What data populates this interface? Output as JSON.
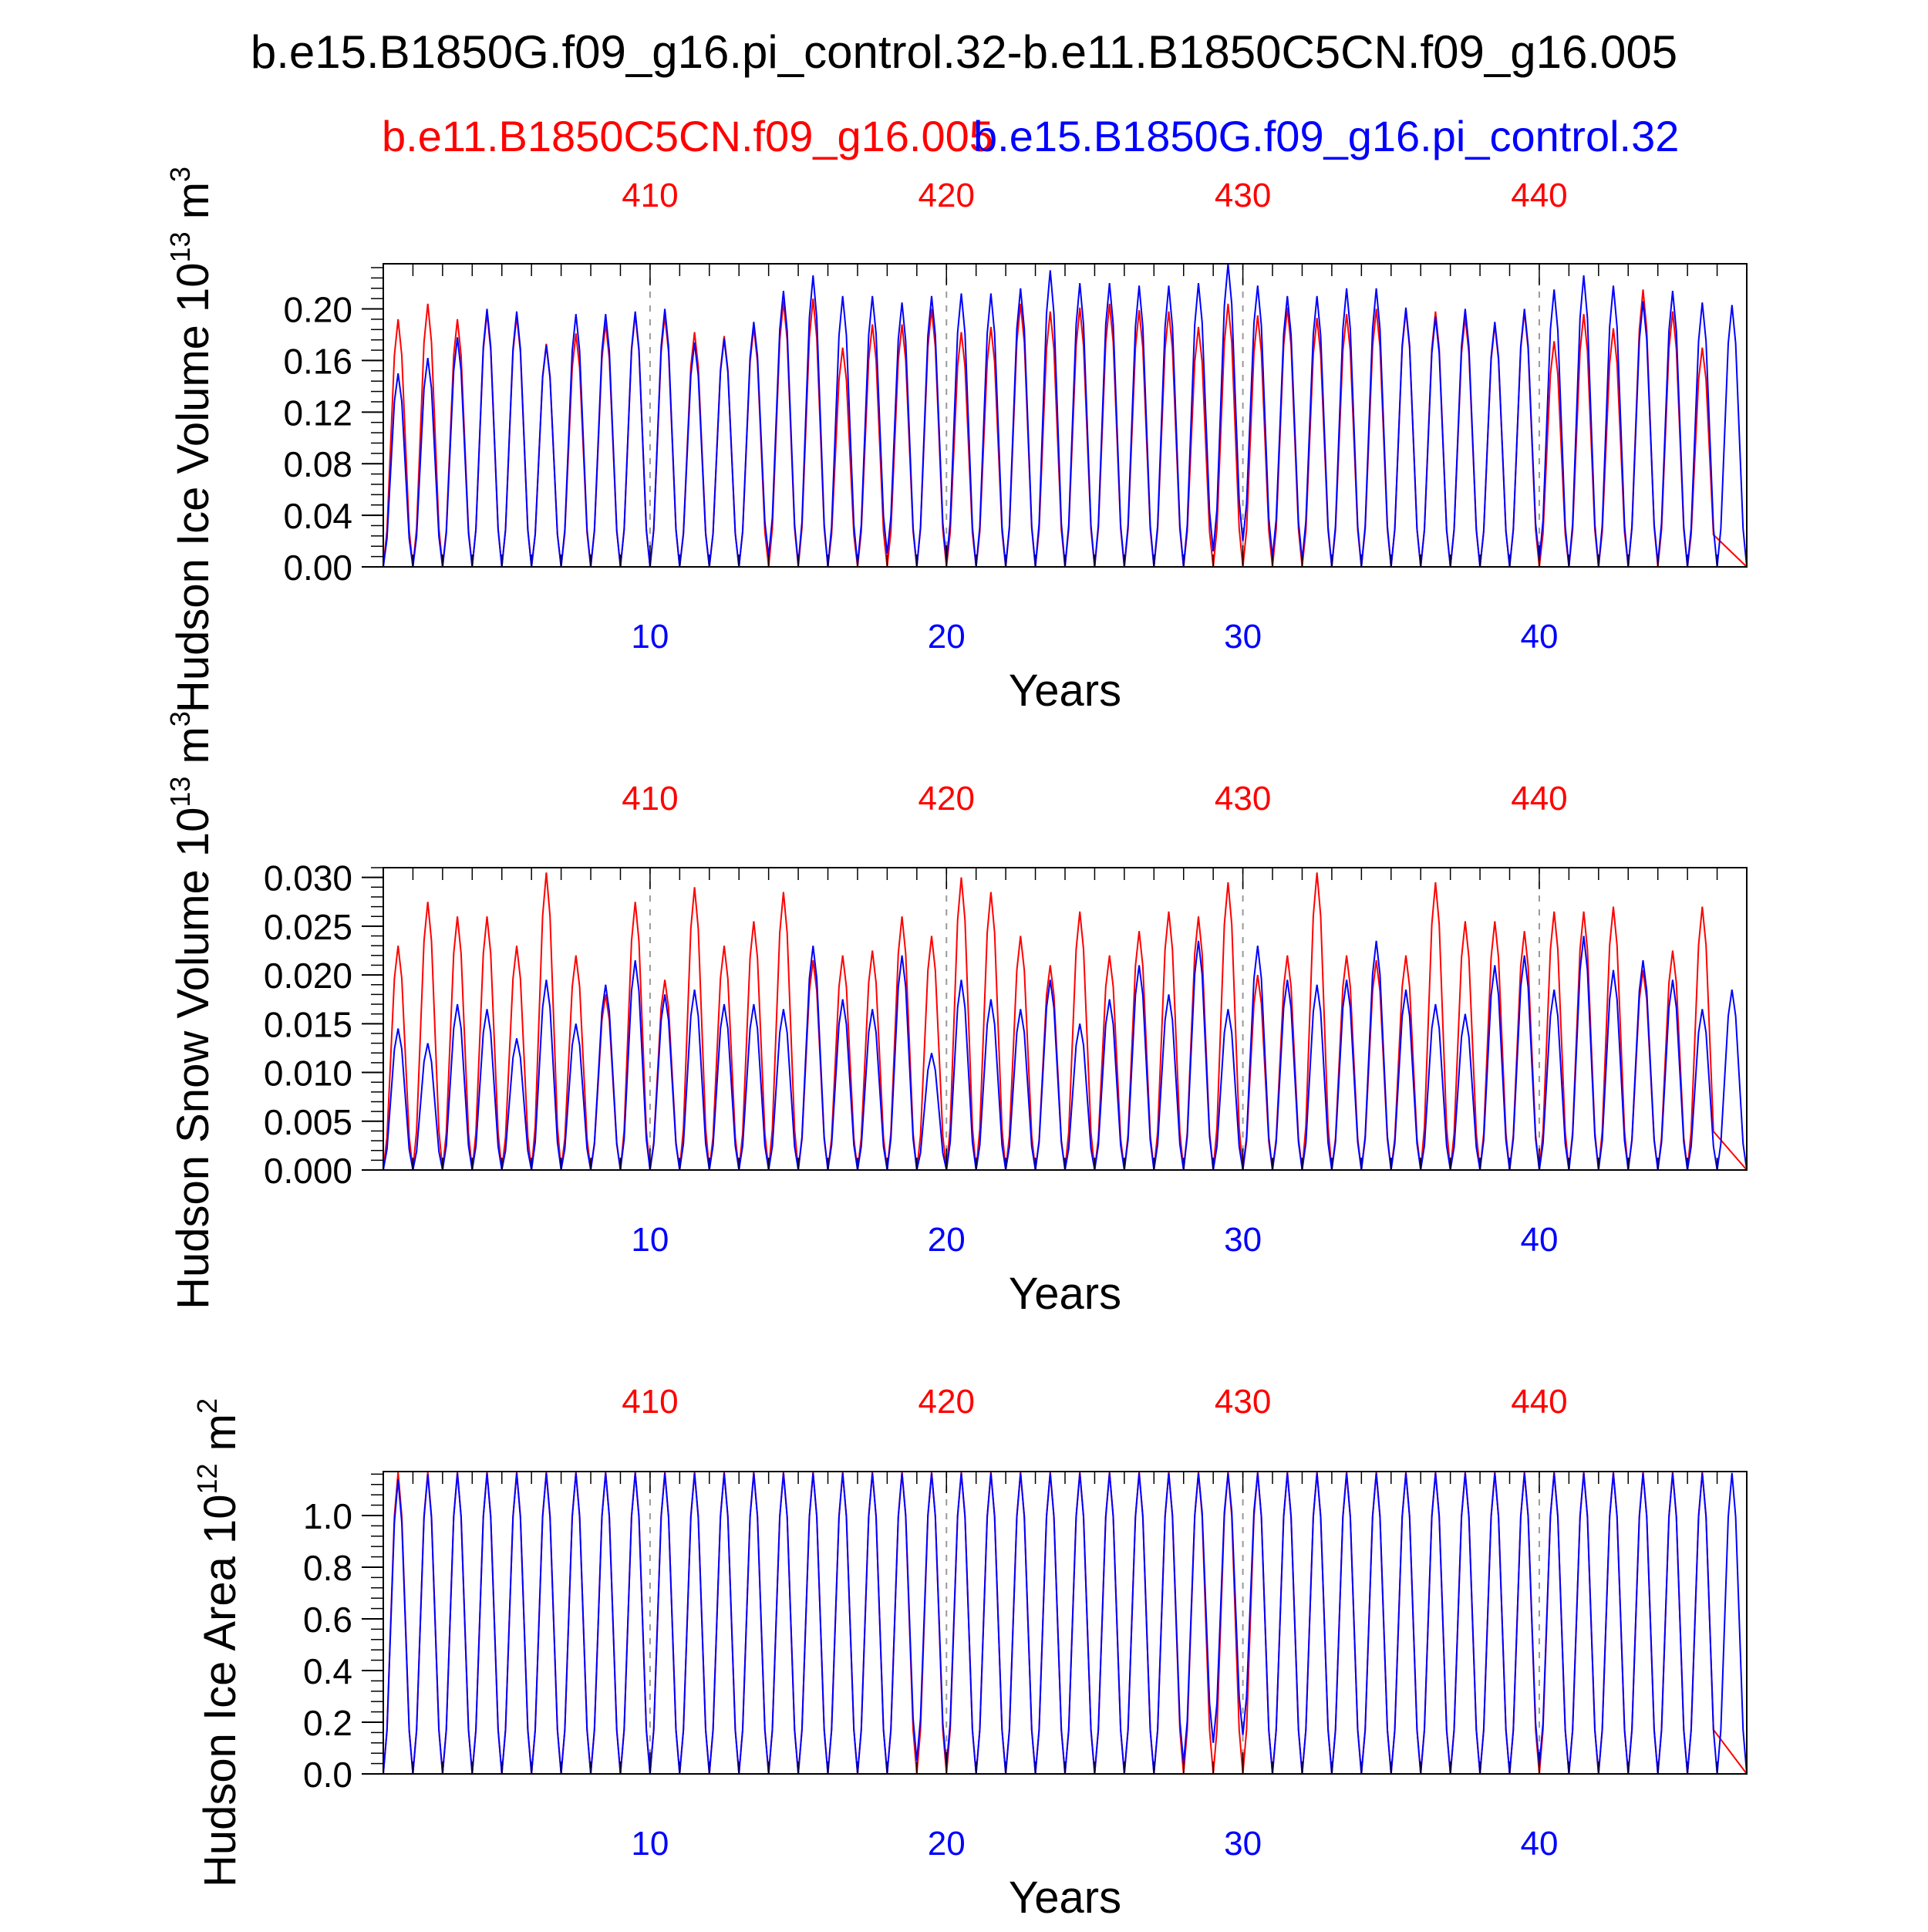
{
  "figure": {
    "title": "b.e15.B1850G.f09_g16.pi_control.32-b.e11.B1850C5CN.f09_g16.005",
    "legend_red": "b.e11.B1850C5CN.f09_g16.005",
    "legend_blue": "b.e15.B1850G.f09_g16.pi_control.32"
  },
  "colors": {
    "red": "#ff0000",
    "blue": "#0000ff",
    "axis": "#000000",
    "grid": "#999999"
  },
  "chart_data": [
    {
      "type": "line",
      "ylabel": "Hudson Ice Volume 10^13 m^3",
      "ylabel_main": "Hudson Ice Volume 10",
      "ylabel_exp": "13",
      "ylabel_unit": " m",
      "ylabel_unit_exp": "3",
      "xlabel": "Years",
      "xlim": [
        1,
        47
      ],
      "ylim": [
        0,
        0.235
      ],
      "yticks": [
        0.0,
        0.04,
        0.08,
        0.12,
        0.16,
        0.2
      ],
      "ytick_labels": [
        "0.00",
        "0.04",
        "0.08",
        "0.12",
        "0.16",
        "0.20"
      ],
      "bottom_ticks": [
        10,
        20,
        30,
        40
      ],
      "top_ticks": [
        410,
        420,
        430,
        440
      ],
      "series": [
        {
          "name": "b.e11.B1850C5CN.f09_g16.005",
          "color": "red",
          "peaks": [
            0.192,
            0.204,
            0.192,
            0.197,
            0.195,
            0.173,
            0.181,
            0.189,
            0.196,
            0.195,
            0.182,
            0.179,
            0.186,
            0.206,
            0.208,
            0.17,
            0.188,
            0.188,
            0.2,
            0.182,
            0.186,
            0.204,
            0.198,
            0.201,
            0.204,
            0.199,
            0.198,
            0.186,
            0.204,
            0.195,
            0.201,
            0.193,
            0.196,
            0.2,
            0.199,
            0.198,
            0.194,
            0.188,
            0.198,
            0.175,
            0.196,
            0.185,
            0.215,
            0.198,
            0.17
          ],
          "troughs": [
            0.0,
            0.0,
            0.0,
            0.0,
            0.0,
            0.0,
            0.0,
            0.0,
            0.0,
            0.0,
            0.0,
            0.0,
            0.0,
            0.0,
            0.0,
            0.0,
            0.0,
            0.0,
            0.0,
            0.0,
            0.0,
            0.0,
            0.0,
            0.0,
            0.0,
            0.0,
            0.0,
            0.0,
            0.0,
            0.0,
            0.0,
            0.0,
            0.0,
            0.0,
            0.0,
            0.0,
            0.0,
            0.0,
            0.0,
            0.0,
            0.0,
            0.0,
            0.0,
            0.0,
            0.0,
            0.0
          ]
        },
        {
          "name": "b.e15.B1850G.f09_g16.pi_control.32",
          "color": "blue",
          "peaks": [
            0.15,
            0.162,
            0.178,
            0.2,
            0.198,
            0.172,
            0.196,
            0.196,
            0.198,
            0.2,
            0.174,
            0.177,
            0.19,
            0.214,
            0.226,
            0.21,
            0.21,
            0.205,
            0.21,
            0.212,
            0.212,
            0.216,
            0.23,
            0.22,
            0.22,
            0.218,
            0.218,
            0.22,
            0.235,
            0.218,
            0.21,
            0.21,
            0.216,
            0.216,
            0.201,
            0.194,
            0.2,
            0.19,
            0.2,
            0.215,
            0.226,
            0.218,
            0.206,
            0.214,
            0.205,
            0.203
          ],
          "troughs": [
            0.0,
            0.0,
            0.0,
            0.0,
            0.0,
            0.0,
            0.0,
            0.0,
            0.0,
            0.0,
            0.0,
            0.0,
            0.0,
            0.008,
            0.002,
            0.0,
            0.002,
            0.01,
            0.0,
            0.004,
            0.0,
            0.0,
            0.0,
            0.0,
            0.0,
            0.0,
            0.0,
            0.0,
            0.012,
            0.02,
            0.007,
            0.005,
            0.0,
            0.0,
            0.0,
            0.0,
            0.0,
            0.0,
            0.0,
            0.005,
            0.0,
            0.0,
            0.0,
            0.003,
            0.0,
            0.0
          ]
        }
      ]
    },
    {
      "type": "line",
      "ylabel": "Hudson Snow Volume 10^13 m^3",
      "ylabel_main": "Hudson Snow Volume 10",
      "ylabel_exp": "13",
      "ylabel_unit": " m",
      "ylabel_unit_exp": "3",
      "xlabel": "Years",
      "xlim": [
        1,
        47
      ],
      "ylim": [
        0,
        0.031
      ],
      "yticks": [
        0.0,
        0.005,
        0.01,
        0.015,
        0.02,
        0.025,
        0.03
      ],
      "ytick_labels": [
        "0.000",
        "0.005",
        "0.010",
        "0.015",
        "0.020",
        "0.025",
        "0.030"
      ],
      "bottom_ticks": [
        10,
        20,
        30,
        40
      ],
      "top_ticks": [
        410,
        420,
        430,
        440
      ],
      "series": [
        {
          "name": "b.e11.B1850C5CN.f09_g16.005",
          "color": "red",
          "peaks": [
            0.023,
            0.0275,
            0.026,
            0.026,
            0.023,
            0.0305,
            0.022,
            0.018,
            0.0275,
            0.0195,
            0.029,
            0.023,
            0.0255,
            0.0285,
            0.0215,
            0.022,
            0.0225,
            0.026,
            0.024,
            0.03,
            0.0285,
            0.024,
            0.021,
            0.0265,
            0.022,
            0.0245,
            0.0265,
            0.026,
            0.0295,
            0.02,
            0.022,
            0.0305,
            0.022,
            0.0215,
            0.022,
            0.0295,
            0.0255,
            0.0255,
            0.0245,
            0.0265,
            0.0265,
            0.027,
            0.0205,
            0.0225,
            0.027
          ],
          "troughs": [
            0.0,
            0.0,
            0.0,
            0.0,
            0.0,
            0.0,
            0.0,
            0.0,
            0.0,
            0.0,
            0.0,
            0.0,
            0.0,
            0.0,
            0.0,
            0.0,
            0.0,
            0.0,
            0.0,
            0.0,
            0.0,
            0.0,
            0.0,
            0.0,
            0.0,
            0.0,
            0.0,
            0.0,
            0.0,
            0.0,
            0.0,
            0.0,
            0.0,
            0.0,
            0.0,
            0.0,
            0.0,
            0.0,
            0.0,
            0.0,
            0.0,
            0.0,
            0.0,
            0.0,
            0.0,
            0.0
          ]
        },
        {
          "name": "b.e15.B1850G.f09_g16.pi_control.32",
          "color": "blue",
          "peaks": [
            0.0145,
            0.013,
            0.017,
            0.0165,
            0.0135,
            0.0195,
            0.015,
            0.019,
            0.0215,
            0.018,
            0.0185,
            0.017,
            0.017,
            0.0165,
            0.023,
            0.0175,
            0.0165,
            0.022,
            0.012,
            0.0195,
            0.0175,
            0.0165,
            0.0195,
            0.015,
            0.0175,
            0.021,
            0.018,
            0.0235,
            0.0165,
            0.023,
            0.0195,
            0.019,
            0.0195,
            0.0235,
            0.0185,
            0.017,
            0.016,
            0.021,
            0.022,
            0.0185,
            0.024,
            0.0205,
            0.0215,
            0.0195,
            0.0165,
            0.0185
          ],
          "troughs": [
            0.0,
            0.0,
            0.0,
            0.0,
            0.0,
            0.0,
            0.0,
            0.0,
            0.0,
            0.0,
            0.0,
            0.0,
            0.0,
            0.0,
            0.0,
            0.0,
            0.0,
            0.0,
            0.0,
            0.0,
            0.0,
            0.0,
            0.0,
            0.0,
            0.0,
            0.0,
            0.0,
            0.0,
            0.0,
            0.0,
            0.0,
            0.0,
            0.0,
            0.0,
            0.0,
            0.0,
            0.0,
            0.0,
            0.0,
            0.0,
            0.0,
            0.0,
            0.0,
            0.0,
            0.0,
            0.0
          ]
        }
      ]
    },
    {
      "type": "line",
      "ylabel": "Hudson Ice Area 10^12 m^2",
      "ylabel_main": "Hudson Ice Area 10",
      "ylabel_exp": "12",
      "ylabel_unit": " m",
      "ylabel_unit_exp": "2",
      "xlabel": "Years",
      "xlim": [
        1,
        47
      ],
      "ylim": [
        0,
        1.17
      ],
      "yticks": [
        0.0,
        0.2,
        0.4,
        0.6,
        0.8,
        1.0
      ],
      "ytick_labels": [
        "0.0",
        "0.2",
        "0.4",
        "0.6",
        "0.8",
        "1.0"
      ],
      "bottom_ticks": [
        10,
        20,
        30,
        40
      ],
      "top_ticks": [
        410,
        420,
        430,
        440
      ],
      "series": [
        {
          "name": "b.e11.B1850C5CN.f09_g16.005",
          "color": "red",
          "peaks": [
            1.168,
            1.168,
            1.168,
            1.168,
            1.168,
            1.168,
            1.168,
            1.168,
            1.168,
            1.168,
            1.168,
            1.168,
            1.168,
            1.168,
            1.168,
            1.168,
            1.168,
            1.168,
            1.168,
            1.168,
            1.168,
            1.168,
            1.168,
            1.168,
            1.168,
            1.168,
            1.168,
            1.168,
            1.168,
            1.168,
            1.168,
            1.168,
            1.168,
            1.168,
            1.168,
            1.168,
            1.168,
            1.168,
            1.168,
            1.168,
            1.168,
            1.168,
            1.168,
            1.168,
            1.168
          ],
          "troughs": [
            0.0,
            0.0,
            0.0,
            0.0,
            0.0,
            0.0,
            0.0,
            0.0,
            0.0,
            0.0,
            0.0,
            0.0,
            0.0,
            0.0,
            0.0,
            0.0,
            0.0,
            0.0,
            0.0,
            0.0,
            0.0,
            0.0,
            0.0,
            0.0,
            0.0,
            0.0,
            0.0,
            0.0,
            0.0,
            0.0,
            0.0,
            0.0,
            0.0,
            0.0,
            0.0,
            0.0,
            0.0,
            0.0,
            0.0,
            0.0,
            0.0,
            0.0,
            0.0,
            0.0,
            0.0,
            0.0
          ]
        },
        {
          "name": "b.e15.B1850G.f09_g16.pi_control.32",
          "color": "blue",
          "peaks": [
            1.14,
            1.16,
            1.165,
            1.165,
            1.165,
            1.165,
            1.165,
            1.165,
            1.165,
            1.165,
            1.165,
            1.165,
            1.165,
            1.165,
            1.165,
            1.165,
            1.165,
            1.165,
            1.165,
            1.165,
            1.165,
            1.165,
            1.165,
            1.165,
            1.165,
            1.165,
            1.165,
            1.165,
            1.165,
            1.165,
            1.165,
            1.165,
            1.165,
            1.165,
            1.165,
            1.165,
            1.165,
            1.165,
            1.165,
            1.165,
            1.165,
            1.165,
            1.165,
            1.165,
            1.165,
            1.165
          ],
          "troughs": [
            0.0,
            0.0,
            0.0,
            0.0,
            0.0,
            0.0,
            0.0,
            0.0,
            0.0,
            0.0,
            0.0,
            0.0,
            0.0,
            0.0,
            0.0,
            0.0,
            0.0,
            0.0,
            0.05,
            0.03,
            0.0,
            0.0,
            0.0,
            0.0,
            0.0,
            0.0,
            0.0,
            0.04,
            0.12,
            0.15,
            0.0,
            0.0,
            0.0,
            0.0,
            0.0,
            0.0,
            0.0,
            0.0,
            0.0,
            0.03,
            0.0,
            0.0,
            0.0,
            0.0,
            0.0,
            0.0
          ]
        }
      ]
    }
  ]
}
